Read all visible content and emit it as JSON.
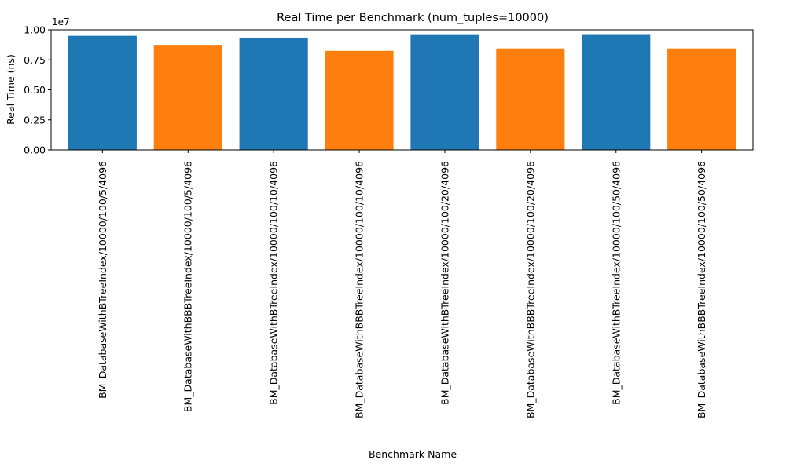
{
  "chart_data": {
    "type": "bar",
    "title": "Real Time per Benchmark (num_tuples=10000)",
    "xlabel": "Benchmark Name",
    "ylabel": "Real Time (ns)",
    "y_offset_label": "1e7",
    "y_scale": 10000000,
    "ylim": [
      0,
      10000000
    ],
    "y_ticks": [
      0,
      2500000,
      5000000,
      7500000,
      10000000
    ],
    "y_tick_labels": [
      "0.00",
      "0.25",
      "0.50",
      "0.75",
      "1.00"
    ],
    "grid": false,
    "categories": [
      "BM_DatabaseWithBTreeIndex/10000/100/5/4096",
      "BM_DatabaseWithBBBTreeIndex/10000/100/5/4096",
      "BM_DatabaseWithBTreeIndex/10000/100/10/4096",
      "BM_DatabaseWithBBBTreeIndex/10000/100/10/4096",
      "BM_DatabaseWithBTreeIndex/10000/100/20/4096",
      "BM_DatabaseWithBBBTreeIndex/10000/100/20/4096",
      "BM_DatabaseWithBTreeIndex/10000/100/50/4096",
      "BM_DatabaseWithBBBTreeIndex/10000/100/50/4096"
    ],
    "values": [
      9500000,
      8750000,
      9350000,
      8250000,
      9630000,
      8450000,
      9640000,
      8450000
    ],
    "bar_colors": [
      "#1f77b4",
      "#ff7f0e",
      "#1f77b4",
      "#ff7f0e",
      "#1f77b4",
      "#ff7f0e",
      "#1f77b4",
      "#ff7f0e"
    ]
  }
}
